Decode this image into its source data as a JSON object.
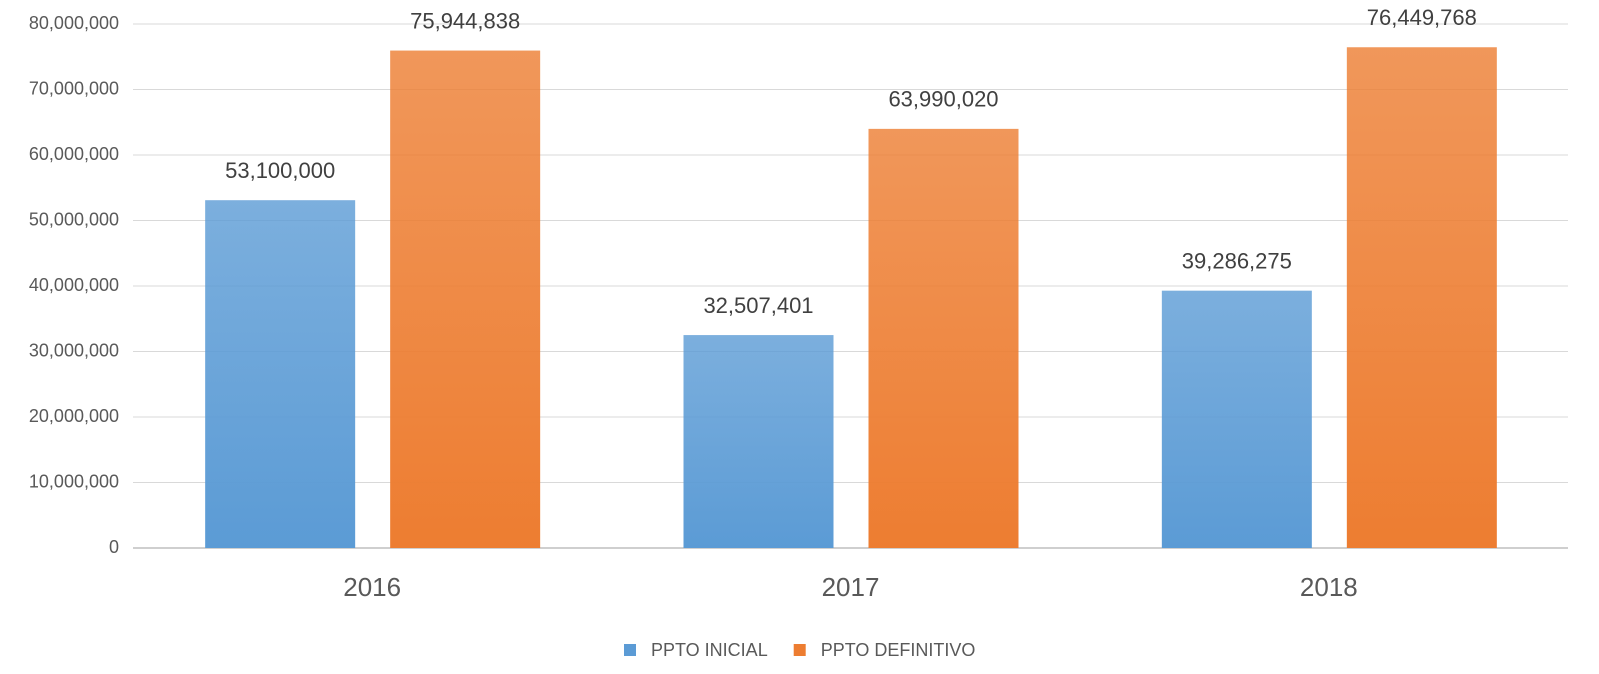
{
  "chart_data": {
    "type": "bar",
    "categories": [
      "2016",
      "2017",
      "2018"
    ],
    "series": [
      {
        "name": "PPTO INICIAL",
        "color": "#5b9bd5",
        "values": [
          53100000,
          32507401,
          39286275
        ],
        "value_labels": [
          "53,100,000",
          "32,507,401",
          "39,286,275"
        ]
      },
      {
        "name": "PPTO DEFINITIVO",
        "color": "#ed7d31",
        "values": [
          75944838,
          63990020,
          76449768
        ],
        "value_labels": [
          "75,944,838",
          "63,990,020",
          "76,449,768"
        ]
      }
    ],
    "ylim": [
      0,
      80000000
    ],
    "yticks": [
      0,
      {
        "value": 10000000,
        "label": "10,000,000"
      },
      {
        "value": 20000000,
        "label": "20,000,000"
      },
      {
        "value": 30000000,
        "label": "30,000,000"
      },
      {
        "value": 40000000,
        "label": "40,000,000"
      },
      {
        "value": 50000000,
        "label": "50,000,000"
      },
      {
        "value": 60000000,
        "label": "60,000,000"
      },
      {
        "value": 70000000,
        "label": "70,000,000"
      },
      {
        "value": 80000000,
        "label": "80,000,000"
      }
    ],
    "grid": true,
    "legend": "bottom"
  }
}
